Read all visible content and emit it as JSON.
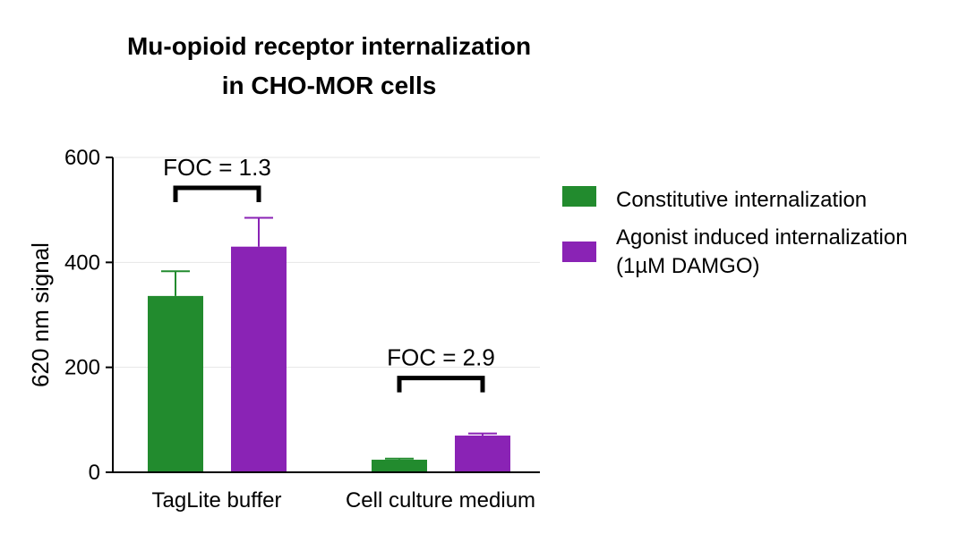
{
  "chart_data": {
    "type": "bar",
    "title_lines": [
      "Mu-opioid receptor internalization",
      "in CHO-MOR cells"
    ],
    "ylabel": "620 nm signal",
    "xlabel": "",
    "ylim": [
      0,
      600
    ],
    "yticks": [
      0,
      200,
      400,
      600
    ],
    "grid": true,
    "categories": [
      "TagLite buffer",
      "Cell culture medium"
    ],
    "series": [
      {
        "name": "Constitutive internalization",
        "color": "#228B2E",
        "values": [
          336,
          24
        ],
        "error": [
          47,
          2
        ]
      },
      {
        "name": "Agonist induced internalization (1µM DAMGO)",
        "name_lines": [
          "Agonist induced internalization",
          "(1µM DAMGO)"
        ],
        "color": "#8A23B5",
        "values": [
          430,
          70
        ],
        "error": [
          55,
          4
        ]
      }
    ],
    "legend_position": "right",
    "annotations": [
      {
        "category": 0,
        "text": "FOC = 1.3"
      },
      {
        "category": 1,
        "text": "FOC = 2.9"
      }
    ]
  }
}
